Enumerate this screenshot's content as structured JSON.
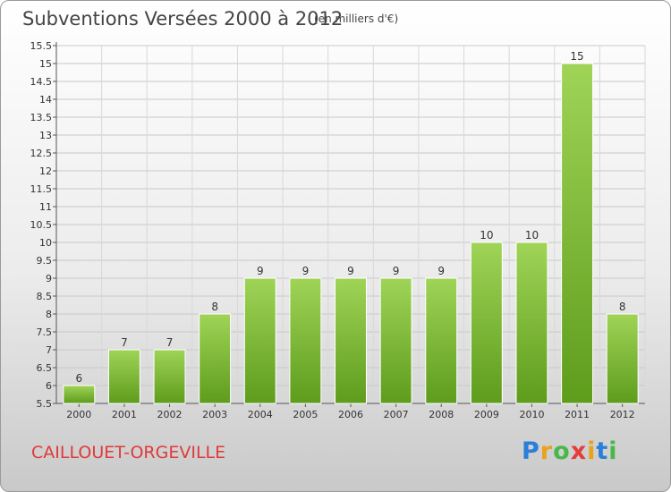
{
  "header": {
    "title": "Subventions Versées 2000 à 2012",
    "subtitle": "(en milliers d'€)"
  },
  "footer": {
    "commune": "CAILLOUET-ORGEVILLE",
    "logo": "Proxiti"
  },
  "chart_data": {
    "type": "bar",
    "title": "Subventions Versées 2000 à 2012",
    "subtitle": "(en milliers d'€)",
    "categories": [
      "2000",
      "2001",
      "2002",
      "2003",
      "2004",
      "2005",
      "2006",
      "2007",
      "2008",
      "2009",
      "2010",
      "2011",
      "2012"
    ],
    "values": [
      6,
      7,
      7,
      8,
      9,
      9,
      9,
      9,
      9,
      10,
      10,
      15,
      8
    ],
    "ylim": [
      5.5,
      15.5
    ],
    "yticks": [
      "5.5",
      "6",
      "6.5",
      "7",
      "7.5",
      "8",
      "8.5",
      "9",
      "9.5",
      "10",
      "10.5",
      "11",
      "11.5",
      "12",
      "12.5",
      "13",
      "13.5",
      "14",
      "14.5",
      "15",
      "15.5"
    ],
    "grid": true,
    "bar_color": "#7cc33a"
  }
}
